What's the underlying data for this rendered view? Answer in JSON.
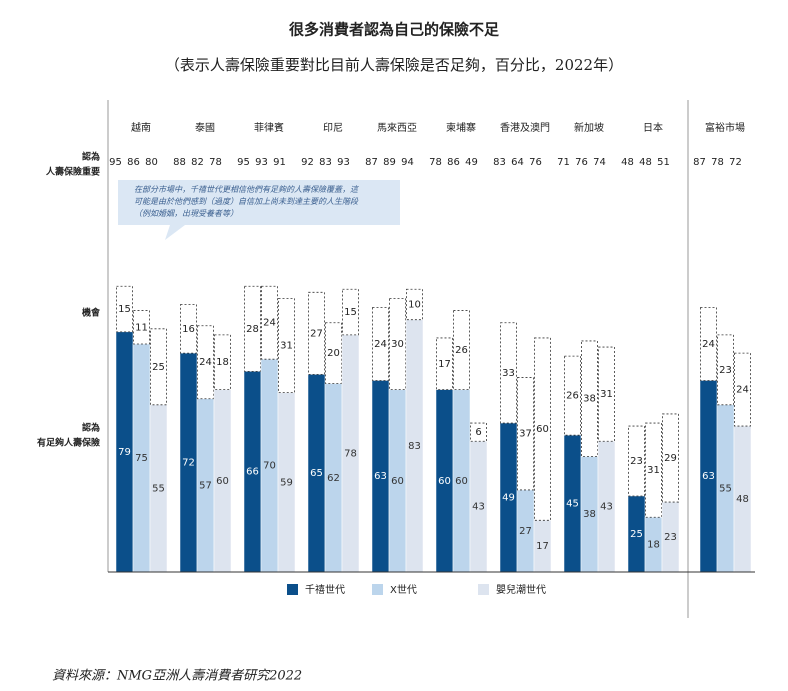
{
  "chart_data": {
    "type": "bar",
    "title": "很多消費者認為自己的保險不足",
    "subtitle": "（表示人壽保險重要對比目前人壽保險是否足夠，百分比，2022年）",
    "categories": [
      "越南",
      "泰國",
      "菲律賓",
      "印尼",
      "馬來西亞",
      "柬埔寨",
      "香港及澳門",
      "新加坡",
      "日本",
      "富裕市場"
    ],
    "row_labels": {
      "important": [
        "認為",
        "人壽保險重要"
      ],
      "opportunity": "機會",
      "sufficient": [
        "認為",
        "有足夠人壽保險"
      ]
    },
    "callout": [
      "在部分市場中，千禧世代更相信他們有足夠的人壽保險覆蓋，這",
      "可能是由於他們感到（過度）自信加上尚未到達主要的人生階段",
      "（例如婚姻，出現受養者等）"
    ],
    "ylim": [
      0,
      100
    ],
    "series": [
      {
        "name": "千禧世代",
        "color": "#0b4f8a",
        "values": [
          79,
          72,
          66,
          65,
          63,
          60,
          49,
          45,
          25,
          63
        ],
        "opportunity": [
          15,
          16,
          28,
          27,
          24,
          17,
          33,
          26,
          23,
          24
        ],
        "important": [
          95,
          88,
          95,
          92,
          87,
          78,
          83,
          71,
          48,
          87
        ]
      },
      {
        "name": "X世代",
        "color": "#bcd5ec",
        "values": [
          75,
          57,
          70,
          62,
          60,
          60,
          27,
          38,
          18,
          55
        ],
        "opportunity": [
          11,
          24,
          24,
          20,
          30,
          26,
          37,
          38,
          31,
          23
        ],
        "important": [
          86,
          82,
          93,
          83,
          89,
          86,
          64,
          76,
          48,
          78
        ]
      },
      {
        "name": "嬰兒潮世代",
        "color": "#dde4ef",
        "values": [
          55,
          60,
          59,
          78,
          83,
          43,
          17,
          43,
          23,
          48
        ],
        "opportunity": [
          25,
          18,
          31,
          15,
          10,
          6,
          60,
          31,
          29,
          24
        ],
        "important": [
          80,
          78,
          91,
          93,
          94,
          49,
          76,
          74,
          51,
          72
        ]
      }
    ],
    "source": "資料來源：NMG亞洲人壽消費者研究2022"
  }
}
